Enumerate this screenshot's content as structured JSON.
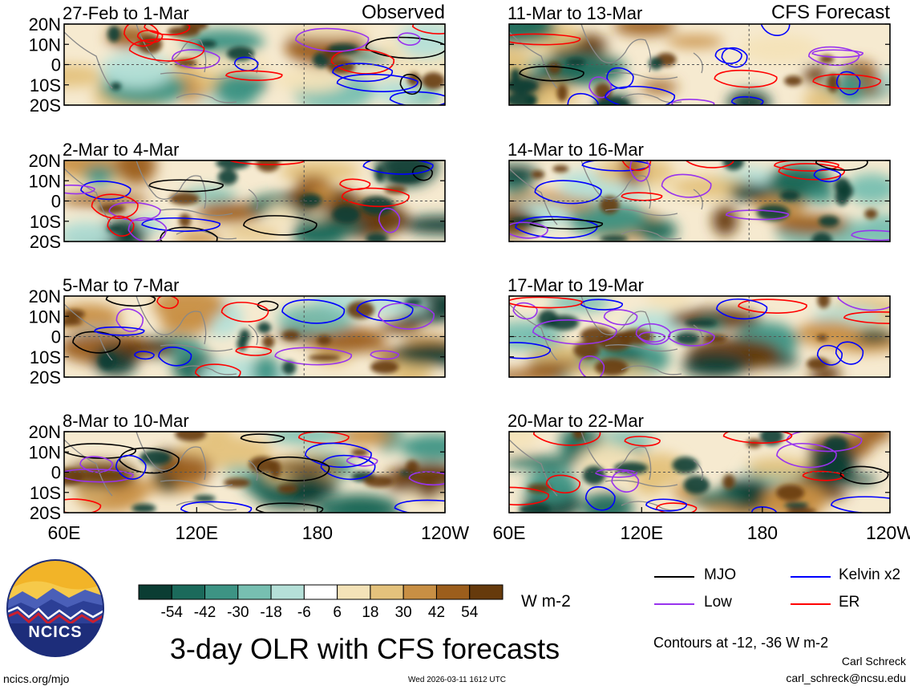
{
  "main_title": "3-day OLR with CFS forecasts",
  "left_header": "Observed",
  "right_header": "CFS Forecast",
  "lat_ticks": [
    "20N",
    "10N",
    "0",
    "10S",
    "20S"
  ],
  "lon_ticks": [
    "60E",
    "120E",
    "180",
    "120W"
  ],
  "colorbar": {
    "units": "W m-2",
    "tick_labels": [
      "-54",
      "-42",
      "-30",
      "-18",
      "-6",
      "6",
      "18",
      "30",
      "42",
      "54"
    ],
    "colors": [
      "#0b3d33",
      "#1b6a5b",
      "#3d9484",
      "#77bfb1",
      "#b5e0d8",
      "#ffffff",
      "#f4e3b8",
      "#e4c27c",
      "#c88f44",
      "#9c5e1c",
      "#663a0c"
    ]
  },
  "legend": {
    "items": [
      {
        "label": "MJO",
        "color": "#000000"
      },
      {
        "label": "Kelvin x2",
        "color": "#0000ff"
      },
      {
        "label": "Low",
        "color": "#9933ee"
      },
      {
        "label": "ER",
        "color": "#ff0000"
      }
    ],
    "note": "Contours at -12, -36 W m-2"
  },
  "logo": {
    "text": "NCICS"
  },
  "footer": {
    "left": "ncics.org/mjo",
    "center": "Wed 2026-03-11 1612 UTC",
    "right_name": "Carl Schreck",
    "right_email": "carl_schreck@ncsu.edu"
  },
  "chart_data": {
    "type": "heatmap",
    "variable": "OLR anomaly",
    "units": "W m-2",
    "lat_range": [
      "20S",
      "20N"
    ],
    "lon_range": [
      "60E",
      "120W"
    ],
    "contour_levels": [
      -12,
      -36
    ],
    "panels": [
      {
        "title": "27-Feb to 1-Mar",
        "kind": "Observed"
      },
      {
        "title": "2-Mar to 4-Mar",
        "kind": "Observed"
      },
      {
        "title": "5-Mar to 7-Mar",
        "kind": "Observed"
      },
      {
        "title": "8-Mar to 10-Mar",
        "kind": "Observed"
      },
      {
        "title": "11-Mar to 13-Mar",
        "kind": "CFS Forecast"
      },
      {
        "title": "14-Mar to 16-Mar",
        "kind": "CFS Forecast"
      },
      {
        "title": "17-Mar to 19-Mar",
        "kind": "CFS Forecast"
      },
      {
        "title": "20-Mar to 22-Mar",
        "kind": "CFS Forecast"
      }
    ]
  }
}
